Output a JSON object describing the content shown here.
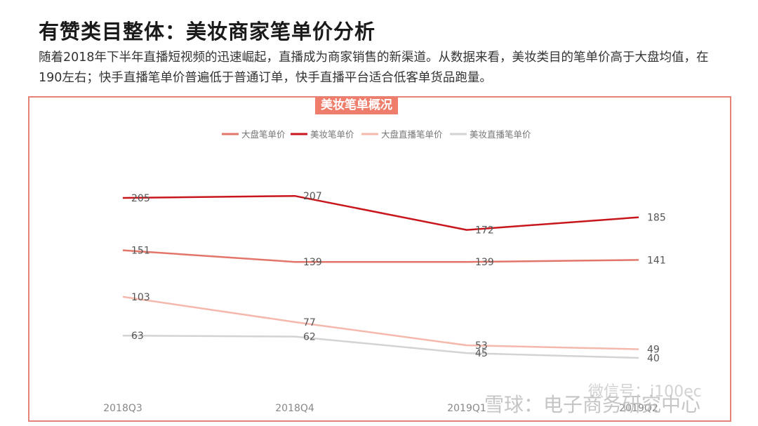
{
  "header": {
    "title": "有赞类目整体：美妆商家笔单价分析",
    "description": "随着2018年下半年直播短视频的迅速崛起，直播成为商家销售的新渠道。从数据来看，美妆类目的笔单价高于大盘均值，在190左右；快手直播笔单价普遍低于普通订单，快手直播平台适合低客单货品跑量。"
  },
  "watermark": {
    "text": "雪球：电子商务研究中心",
    "text2": "微信号：i100ec"
  },
  "chart_data": {
    "type": "line",
    "title": "美妆笔单概况",
    "categories": [
      "2018Q3",
      "2018Q4",
      "2019Q1",
      "2019Q2"
    ],
    "ylim": [
      0,
      230
    ],
    "grid": false,
    "legend_position": "top",
    "series": [
      {
        "name": "大盘笔单价",
        "values": [
          151,
          139,
          139,
          141
        ],
        "color": "#e3766a"
      },
      {
        "name": "美妆笔单价",
        "values": [
          205,
          207,
          172,
          185
        ],
        "color": "#c8161d"
      },
      {
        "name": "大盘直播笔单价",
        "values": [
          103,
          77,
          53,
          49
        ],
        "color": "#f4b8ac"
      },
      {
        "name": "美妆直播笔单价",
        "values": [
          63,
          62,
          45,
          40
        ],
        "color": "#d3d3d3"
      }
    ]
  }
}
